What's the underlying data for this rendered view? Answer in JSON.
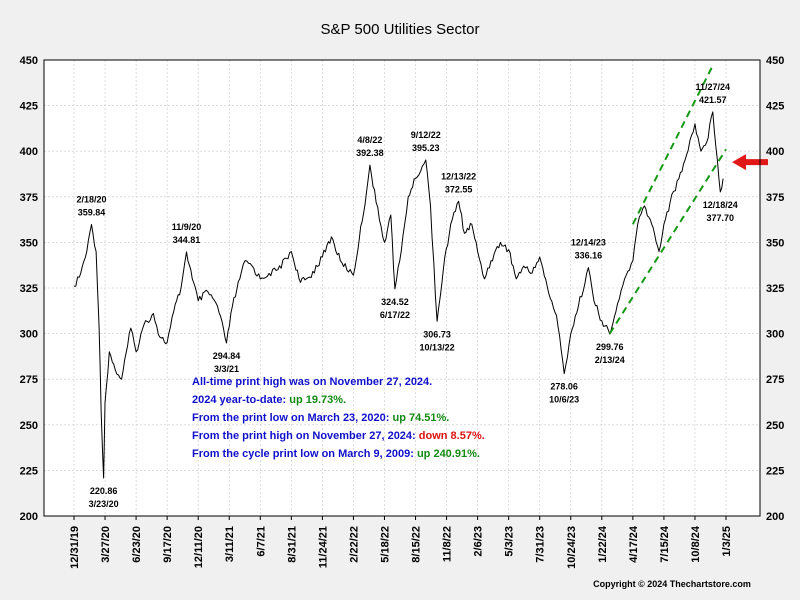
{
  "chart_data": {
    "type": "line",
    "title": "S&P 500 Utilities Sector",
    "ylim": [
      200,
      450
    ],
    "y_ticks": [
      200,
      225,
      250,
      275,
      300,
      325,
      350,
      375,
      400,
      425,
      450
    ],
    "x_ticks": [
      "12/31/19",
      "3/27/20",
      "6/23/20",
      "9/17/20",
      "12/11/20",
      "3/11/21",
      "6/7/21",
      "8/31/21",
      "11/24/21",
      "2/22/22",
      "5/18/22",
      "8/15/22",
      "11/8/22",
      "2/6/23",
      "5/3/23",
      "7/31/23",
      "10/24/23",
      "1/22/24",
      "4/17/24",
      "7/15/24",
      "10/8/24",
      "1/3/25"
    ],
    "grid": true,
    "series": [
      {
        "color": "#000000",
        "points": [
          [
            "12/31/19",
            326
          ],
          [
            "1/15/20",
            331
          ],
          [
            "2/5/20",
            345
          ],
          [
            "2/18/20",
            359.84
          ],
          [
            "3/2/20",
            345
          ],
          [
            "3/10/20",
            305
          ],
          [
            "3/16/20",
            258
          ],
          [
            "3/23/20",
            220.86
          ],
          [
            "3/27/20",
            262
          ],
          [
            "4/8/20",
            290
          ],
          [
            "4/25/20",
            280
          ],
          [
            "5/13/20",
            275
          ],
          [
            "6/8/20",
            303
          ],
          [
            "6/23/20",
            290
          ],
          [
            "7/15/20",
            305
          ],
          [
            "8/10/20",
            311
          ],
          [
            "8/28/20",
            298
          ],
          [
            "9/17/20",
            295
          ],
          [
            "10/5/20",
            312
          ],
          [
            "10/25/20",
            325
          ],
          [
            "11/9/20",
            344.81
          ],
          [
            "11/25/20",
            330
          ],
          [
            "12/11/20",
            318
          ],
          [
            "1/8/21",
            323
          ],
          [
            "2/5/21",
            315
          ],
          [
            "3/3/21",
            294.84
          ],
          [
            "3/20/21",
            315
          ],
          [
            "4/10/21",
            330
          ],
          [
            "4/25/21",
            340
          ],
          [
            "5/15/21",
            337
          ],
          [
            "6/7/21",
            330
          ],
          [
            "7/1/21",
            333
          ],
          [
            "7/25/21",
            335
          ],
          [
            "8/31/21",
            345
          ],
          [
            "9/25/21",
            328
          ],
          [
            "10/20/21",
            331
          ],
          [
            "11/24/21",
            342
          ],
          [
            "12/20/21",
            353
          ],
          [
            "1/15/22",
            340
          ],
          [
            "2/22/22",
            332
          ],
          [
            "3/10/22",
            352
          ],
          [
            "3/30/22",
            378
          ],
          [
            "4/8/22",
            392.38
          ],
          [
            "4/25/22",
            372
          ],
          [
            "5/18/22",
            350
          ],
          [
            "6/5/22",
            365
          ],
          [
            "6/17/22",
            324.52
          ],
          [
            "7/5/22",
            345
          ],
          [
            "7/25/22",
            375
          ],
          [
            "8/15/22",
            385
          ],
          [
            "9/12/22",
            395.23
          ],
          [
            "9/25/22",
            370
          ],
          [
            "10/13/22",
            306.73
          ],
          [
            "10/30/22",
            335
          ],
          [
            "11/20/22",
            360
          ],
          [
            "12/13/22",
            372.55
          ],
          [
            "12/30/22",
            355
          ],
          [
            "1/20/23",
            360
          ],
          [
            "2/6/23",
            345
          ],
          [
            "2/25/23",
            330
          ],
          [
            "3/15/23",
            340
          ],
          [
            "4/10/23",
            350
          ],
          [
            "5/3/23",
            346
          ],
          [
            "5/25/23",
            330
          ],
          [
            "6/15/23",
            337
          ],
          [
            "7/5/23",
            333
          ],
          [
            "7/31/23",
            342
          ],
          [
            "8/25/23",
            322
          ],
          [
            "9/15/23",
            310
          ],
          [
            "10/6/23",
            278.06
          ],
          [
            "10/24/23",
            300
          ],
          [
            "11/15/23",
            315
          ],
          [
            "12/14/23",
            336.16
          ],
          [
            "12/30/23",
            318
          ],
          [
            "1/22/24",
            307
          ],
          [
            "2/13/24",
            299.76
          ],
          [
            "3/1/24",
            312
          ],
          [
            "3/25/24",
            330
          ],
          [
            "4/17/24",
            340
          ],
          [
            "5/1/24",
            360
          ],
          [
            "5/20/24",
            370
          ],
          [
            "6/10/24",
            360
          ],
          [
            "7/1/24",
            345
          ],
          [
            "7/15/24",
            360
          ],
          [
            "8/1/24",
            372
          ],
          [
            "8/25/24",
            385
          ],
          [
            "9/15/24",
            398
          ],
          [
            "10/8/24",
            415
          ],
          [
            "10/25/24",
            400
          ],
          [
            "11/10/24",
            405
          ],
          [
            "11/27/24",
            421.57
          ],
          [
            "12/10/24",
            395
          ],
          [
            "12/18/24",
            377.7
          ],
          [
            "12/26/24",
            385
          ]
        ]
      }
    ],
    "channel": {
      "color": "#159a15",
      "lines": [
        [
          [
            "4/17/24",
            360
          ],
          [
            "11/27/24",
            447
          ]
        ],
        [
          [
            "2/13/24",
            300
          ],
          [
            "1/3/25",
            401
          ]
        ]
      ]
    },
    "annotations": [
      {
        "date": "2/18/20",
        "label": "2/18/20",
        "value": "359.84"
      },
      {
        "date": "3/23/20",
        "label": "220.86",
        "value": "3/23/20",
        "below": true
      },
      {
        "date": "11/9/20",
        "label": "11/9/20",
        "value": "344.81"
      },
      {
        "date": "3/3/21",
        "label": "294.84",
        "value": "3/3/21",
        "below": true
      },
      {
        "date": "4/8/22",
        "label": "4/8/22",
        "value": "392.38"
      },
      {
        "date": "6/17/22",
        "label": "324.52",
        "value": "6/17/22",
        "below": true
      },
      {
        "date": "9/12/22",
        "label": "9/12/22",
        "value": "395.23"
      },
      {
        "date": "10/13/22",
        "label": "306.73",
        "value": "10/13/22",
        "below": true
      },
      {
        "date": "12/13/22",
        "label": "12/13/22",
        "value": "372.55"
      },
      {
        "date": "10/6/23",
        "label": "278.06",
        "value": "10/6/23",
        "below": true
      },
      {
        "date": "12/14/23",
        "label": "12/14/23",
        "value": "336.16"
      },
      {
        "date": "2/13/24",
        "label": "299.76",
        "value": "2/13/24",
        "below": true
      },
      {
        "date": "11/27/24",
        "label": "11/27/24",
        "value": "421.57"
      },
      {
        "date": "12/18/24",
        "label": "12/18/24",
        "value": "377.70",
        "below": true
      }
    ],
    "notes": [
      {
        "parts": [
          {
            "text": "All-time print high was on November 27, 2024.",
            "color": "#1010cc"
          }
        ]
      },
      {
        "parts": [
          {
            "text": "2024 year-to-date:  ",
            "color": "#1010cc"
          },
          {
            "text": "up 19.73%.",
            "color": "#138a13"
          }
        ]
      },
      {
        "parts": [
          {
            "text": "From the print low on March 23, 2020:  ",
            "color": "#1010cc"
          },
          {
            "text": "up 74.51%.",
            "color": "#138a13"
          }
        ]
      },
      {
        "parts": [
          {
            "text": "From the print high on November 27, 2024:  ",
            "color": "#1010cc"
          },
          {
            "text": "down 8.57%.",
            "color": "#dd1111"
          }
        ]
      },
      {
        "parts": [
          {
            "text": "From the cycle print low on March 9, 2009:  ",
            "color": "#1010cc"
          },
          {
            "text": "up 240.91%.",
            "color": "#138a13"
          }
        ]
      }
    ],
    "arrow": {
      "color": "#e01818",
      "value": 394,
      "direction": "left"
    },
    "copyright": "Copyright © 2024 Thechartstore.com"
  }
}
